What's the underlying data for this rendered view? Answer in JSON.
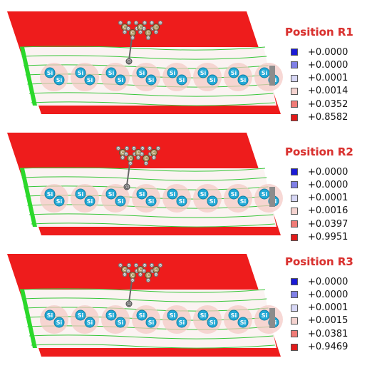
{
  "legend_colors": [
    "#1a1ad6",
    "#8080e6",
    "#d6d6f5",
    "#f4d2cf",
    "#f07b77",
    "#e11a1a"
  ],
  "atom_label": "Si",
  "molecule_labels": {
    "carbon": "C",
    "hydrogen": "H",
    "oxygen": "O"
  },
  "panels": [
    {
      "title": "Position R1",
      "values": [
        "+0.0000",
        "+0.0000",
        "+0.0001",
        "+0.0014",
        "+0.0352",
        "+0.8582"
      ]
    },
    {
      "title": "Position R2",
      "values": [
        "+0.0000",
        "+0.0000",
        "+0.0001",
        "+0.0016",
        "+0.0397",
        "+0.9951"
      ]
    },
    {
      "title": "Position R3",
      "values": [
        "+0.0000",
        "+0.0000",
        "+0.0001",
        "+0.0015",
        "+0.0381",
        "+0.9469"
      ]
    }
  ]
}
